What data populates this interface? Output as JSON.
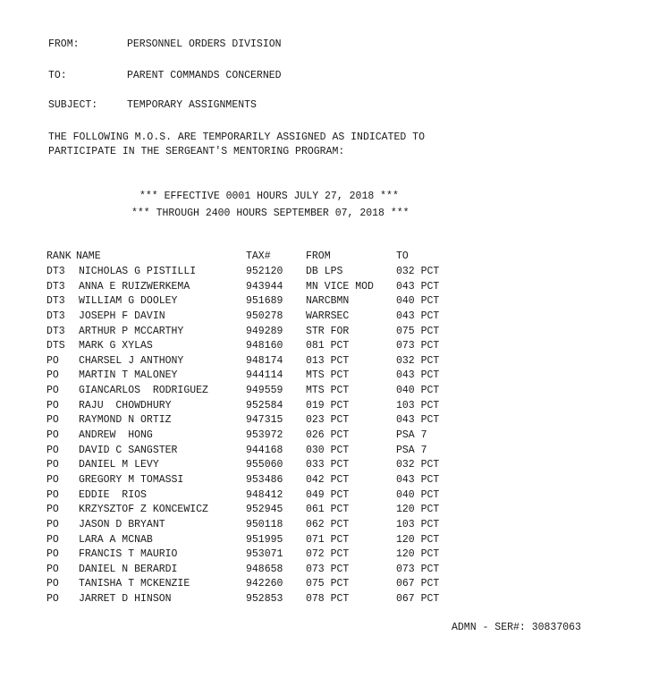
{
  "header": {
    "from_label": "FROM:",
    "from_value": "PERSONNEL ORDERS DIVISION",
    "to_label": "TO:",
    "to_value": "PARENT COMMANDS CONCERNED",
    "subject_label": "SUBJECT:",
    "subject_value": "TEMPORARY ASSIGNMENTS"
  },
  "body": {
    "line1": "THE FOLLOWING M.O.S. ARE TEMPORARILY ASSIGNED AS INDICATED TO",
    "line2": "PARTICIPATE IN THE SERGEANT'S MENTORING PROGRAM:"
  },
  "effective": {
    "line1": "*** EFFECTIVE 0001 HOURS JULY 27, 2018 ***",
    "line2": "*** THROUGH 2400 HOURS SEPTEMBER 07, 2018 ***"
  },
  "table": {
    "columns": [
      "RANK",
      "NAME",
      "TAX#",
      "FROM",
      "TO"
    ],
    "rows": [
      [
        "DT3",
        "NICHOLAS G PISTILLI",
        "952120",
        "DB LPS",
        "032 PCT"
      ],
      [
        "DT3",
        "ANNA E RUIZWERKEMA",
        "943944",
        "MN VICE MOD",
        "043 PCT"
      ],
      [
        "DT3",
        "WILLIAM G DOOLEY",
        "951689",
        "NARCBMN",
        "040 PCT"
      ],
      [
        "DT3",
        "JOSEPH F DAVIN",
        "950278",
        "WARRSEC",
        "043 PCT"
      ],
      [
        "DT3",
        "ARTHUR P MCCARTHY",
        "949289",
        "STR FOR",
        "075 PCT"
      ],
      [
        "DTS",
        "MARK G XYLAS",
        "948160",
        "081 PCT",
        "073 PCT"
      ],
      [
        "PO",
        "CHARSEL J ANTHONY",
        "948174",
        "013 PCT",
        "032 PCT"
      ],
      [
        "PO",
        "MARTIN T MALONEY",
        "944114",
        "MTS PCT",
        "043 PCT"
      ],
      [
        "PO",
        "GIANCARLOS  RODRIGUEZ",
        "949559",
        "MTS PCT",
        "040 PCT"
      ],
      [
        "PO",
        "RAJU  CHOWDHURY",
        "952584",
        "019 PCT",
        "103 PCT"
      ],
      [
        "PO",
        "RAYMOND N ORTIZ",
        "947315",
        "023 PCT",
        "043 PCT"
      ],
      [
        "PO",
        "ANDREW  HONG",
        "953972",
        "026 PCT",
        "PSA 7"
      ],
      [
        "PO",
        "DAVID C SANGSTER",
        "944168",
        "030 PCT",
        "PSA 7"
      ],
      [
        "PO",
        "DANIEL M LEVY",
        "955060",
        "033 PCT",
        "032 PCT"
      ],
      [
        "PO",
        "GREGORY M TOMASSI",
        "953486",
        "042 PCT",
        "043 PCT"
      ],
      [
        "PO",
        "EDDIE  RIOS",
        "948412",
        "049 PCT",
        "040 PCT"
      ],
      [
        "PO",
        "KRZYSZTOF Z KONCEWICZ",
        "952945",
        "061 PCT",
        "120 PCT"
      ],
      [
        "PO",
        "JASON D BRYANT",
        "950118",
        "062 PCT",
        "103 PCT"
      ],
      [
        "PO",
        "LARA A MCNAB",
        "951995",
        "071 PCT",
        "120 PCT"
      ],
      [
        "PO",
        "FRANCIS T MAURIO",
        "953071",
        "072 PCT",
        "120 PCT"
      ],
      [
        "PO",
        "DANIEL N BERARDI",
        "948658",
        "073 PCT",
        "073 PCT"
      ],
      [
        "PO",
        "TANISHA T MCKENZIE",
        "942260",
        "075 PCT",
        "067 PCT"
      ],
      [
        "PO",
        "JARRET D HINSON",
        "952853",
        "078 PCT",
        "067 PCT"
      ]
    ]
  },
  "footer": {
    "serial": "ADMN - SER#: 30837063"
  }
}
